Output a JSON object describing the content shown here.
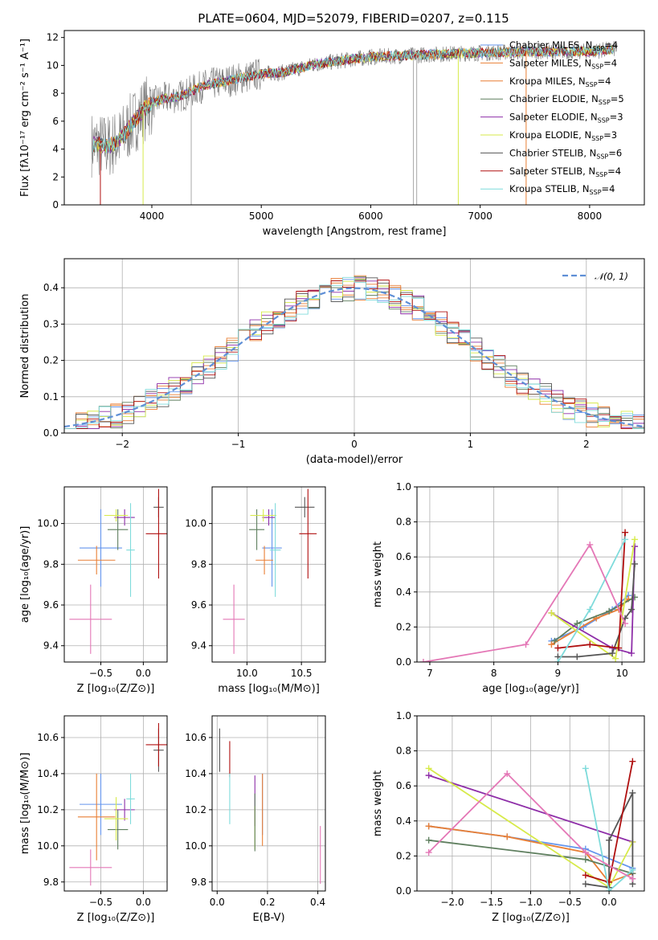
{
  "colors": {
    "Chabrier MILES": "#6495ed",
    "Salpeter MILES": "#e97f35",
    "Kroupa MILES": "#e97f35",
    "Chabrier ELODIE": "#5f7f5f",
    "Salpeter ELODIE": "#8e2ea8",
    "Kroupa ELODIE": "#d7ea4a",
    "Chabrier STELIB": "#555555",
    "Salpeter STELIB": "#b01010",
    "Kroupa STELIB": "#7fdbdb",
    "pink": "#e477b6",
    "gaussian": "#5f8fd6",
    "data": "#7a7a7a"
  },
  "chart_data": [
    {
      "id": "spectrum",
      "type": "line",
      "title": "PLATE=0604, MJD=52079, FIBERID=0207, z=0.115",
      "xlabel": "wavelength [Angstrom, rest frame]",
      "ylabel": "Flux [fλ10⁻¹⁷ erg cm⁻² s⁻¹ A⁻¹]",
      "xlim": [
        3200,
        8500
      ],
      "ylim": [
        0,
        12.5
      ],
      "xticks": [
        4000,
        5000,
        6000,
        7000,
        8000
      ],
      "yticks": [
        0,
        2,
        4,
        6,
        8,
        10,
        12
      ],
      "continuum": [
        [
          3500,
          4.3
        ],
        [
          3600,
          4.2
        ],
        [
          3700,
          4.6
        ],
        [
          3800,
          5.6
        ],
        [
          3900,
          6.6
        ],
        [
          4000,
          7.3
        ],
        [
          4100,
          7.6
        ],
        [
          4200,
          7.7
        ],
        [
          4300,
          7.9
        ],
        [
          4400,
          8.3
        ],
        [
          4500,
          8.6
        ],
        [
          4700,
          8.9
        ],
        [
          5000,
          9.4
        ],
        [
          5200,
          9.5
        ],
        [
          5500,
          10.1
        ],
        [
          5800,
          10.4
        ],
        [
          6000,
          10.6
        ],
        [
          6300,
          10.7
        ],
        [
          6600,
          10.8
        ],
        [
          7000,
          10.9
        ],
        [
          7500,
          11.0
        ],
        [
          8000,
          11.0
        ],
        [
          8250,
          11.2
        ]
      ],
      "legend": [
        "Chabrier MILES, N_SSP=4",
        "Salpeter MILES, N_SSP=4",
        "Kroupa MILES, N_SSP=4",
        "Chabrier ELODIE, N_SSP=5",
        "Salpeter ELODIE, N_SSP=3",
        "Kroupa ELODIE, N_SSP=3",
        "Chabrier STELIB, N_SSP=6",
        "Salpeter STELIB, N_SSP=4",
        "Kroupa STELIB, N_SSP=4"
      ],
      "legend_placement": "right"
    },
    {
      "id": "residuals",
      "type": "bar",
      "xlabel": "(data-model)/error",
      "ylabel": "Normed distribution",
      "xlim": [
        -2.5,
        2.5
      ],
      "ylim": [
        0,
        0.48
      ],
      "xticks": [
        -2,
        -1,
        0,
        1,
        2
      ],
      "yticks": [
        0.0,
        0.1,
        0.2,
        0.3,
        0.4
      ],
      "grid": true,
      "legend": [
        "𝒩(0, 1)"
      ],
      "legend_placement": "top-right"
    },
    {
      "id": "age-vs-Z",
      "type": "scatter",
      "xlabel": "Z [log₁₀(Z/Z⊙)]",
      "ylabel": "age  [log₁₀(age/yr)]",
      "xlim": [
        -0.93,
        0.28
      ],
      "ylim": [
        9.32,
        10.18
      ],
      "xticks": [
        -0.5,
        0.0
      ],
      "yticks": [
        9.4,
        9.6,
        9.8,
        10.0
      ],
      "grid": true,
      "points": [
        {
          "series": "Chabrier MILES",
          "x": -0.5,
          "y": 9.88
        },
        {
          "series": "Salpeter MILES",
          "x": -0.55,
          "y": 9.82
        },
        {
          "series": "Chabrier ELODIE",
          "x": -0.3,
          "y": 9.97
        },
        {
          "series": "Salpeter ELODIE",
          "x": -0.22,
          "y": 10.03
        },
        {
          "series": "Kroupa ELODIE",
          "x": -0.32,
          "y": 10.04
        },
        {
          "series": "Chabrier STELIB",
          "x": 0.18,
          "y": 10.08
        },
        {
          "series": "Salpeter STELIB",
          "x": 0.18,
          "y": 9.95
        },
        {
          "series": "Kroupa STELIB",
          "x": -0.15,
          "y": 9.87
        },
        {
          "series": "pink",
          "x": -0.62,
          "y": 9.53
        }
      ]
    },
    {
      "id": "age-vs-mass",
      "type": "scatter",
      "xlabel": "mass [log₁₀(M/M⊙)]",
      "ylabel": "",
      "xlim": [
        9.68,
        10.72
      ],
      "ylim": [
        9.32,
        10.18
      ],
      "xticks": [
        10.0,
        10.5
      ],
      "yticks": [
        9.4,
        9.6,
        9.8,
        10.0
      ],
      "grid": true,
      "points": [
        {
          "series": "Chabrier MILES",
          "x": 10.23,
          "y": 9.88
        },
        {
          "series": "Salpeter MILES",
          "x": 10.16,
          "y": 9.82
        },
        {
          "series": "Chabrier ELODIE",
          "x": 10.09,
          "y": 9.97
        },
        {
          "series": "Salpeter ELODIE",
          "x": 10.2,
          "y": 10.03
        },
        {
          "series": "Kroupa ELODIE",
          "x": 10.15,
          "y": 10.04
        },
        {
          "series": "Chabrier STELIB",
          "x": 10.53,
          "y": 10.08
        },
        {
          "series": "Salpeter STELIB",
          "x": 10.56,
          "y": 9.95
        },
        {
          "series": "Kroupa STELIB",
          "x": 10.26,
          "y": 9.87
        },
        {
          "series": "pink",
          "x": 9.88,
          "y": 9.53
        }
      ]
    },
    {
      "id": "weight-vs-age",
      "type": "line",
      "xlabel": "age  [log₁₀(age/yr)]",
      "ylabel": "mass weight",
      "xlim": [
        6.8,
        10.35
      ],
      "ylim": [
        0,
        1.0
      ],
      "xticks": [
        7,
        8,
        9,
        10
      ],
      "yticks": [
        0.0,
        0.2,
        0.4,
        0.6,
        0.8,
        1.0
      ],
      "grid": true,
      "series": [
        {
          "name": "Chabrier MILES",
          "x": [
            8.9,
            9.4,
            9.85,
            10.1
          ],
          "y": [
            0.12,
            0.2,
            0.3,
            0.38
          ]
        },
        {
          "name": "Salpeter MILES",
          "x": [
            8.9,
            9.6,
            9.95,
            10.1
          ],
          "y": [
            0.1,
            0.25,
            0.3,
            0.36
          ]
        },
        {
          "name": "Chabrier ELODIE",
          "x": [
            8.95,
            9.3,
            9.8,
            10.2
          ],
          "y": [
            0.12,
            0.22,
            0.29,
            0.37
          ]
        },
        {
          "name": "Salpeter ELODIE",
          "x": [
            8.9,
            9.85,
            10.15,
            10.2
          ],
          "y": [
            0.28,
            0.08,
            0.05,
            0.66
          ]
        },
        {
          "name": "Kroupa ELODIE",
          "x": [
            8.9,
            9.9,
            10.2
          ],
          "y": [
            0.28,
            0.02,
            0.7
          ]
        },
        {
          "name": "Chabrier STELIB",
          "x": [
            9.0,
            9.3,
            9.85,
            10.05,
            10.15,
            10.2
          ],
          "y": [
            0.03,
            0.03,
            0.05,
            0.25,
            0.3,
            0.56
          ]
        },
        {
          "name": "Salpeter STELIB",
          "x": [
            9.0,
            9.5,
            9.95,
            10.05
          ],
          "y": [
            0.08,
            0.1,
            0.08,
            0.74
          ]
        },
        {
          "name": "Kroupa STELIB",
          "x": [
            9.0,
            9.5,
            10.05
          ],
          "y": [
            0.0,
            0.3,
            0.7
          ]
        },
        {
          "name": "pink",
          "x": [
            6.9,
            8.5,
            9.5,
            10.05
          ],
          "y": [
            0.0,
            0.1,
            0.67,
            0.22
          ]
        }
      ]
    },
    {
      "id": "mass-vs-Z",
      "type": "scatter",
      "xlabel": "Z [log₁₀(Z/Z⊙)]",
      "ylabel": "mass [log₁₀(M/M⊙)]",
      "xlim": [
        -0.93,
        0.28
      ],
      "ylim": [
        9.75,
        10.72
      ],
      "xticks": [
        -0.5,
        0.0
      ],
      "yticks": [
        9.8,
        10.0,
        10.2,
        10.4,
        10.6
      ],
      "grid": true,
      "points": [
        {
          "series": "Chabrier MILES",
          "x": -0.5,
          "y": 10.23
        },
        {
          "series": "Salpeter MILES",
          "x": -0.55,
          "y": 10.16
        },
        {
          "series": "Chabrier ELODIE",
          "x": -0.3,
          "y": 10.09
        },
        {
          "series": "Salpeter ELODIE",
          "x": -0.22,
          "y": 10.2
        },
        {
          "series": "Kroupa ELODIE",
          "x": -0.32,
          "y": 10.15
        },
        {
          "series": "Chabrier STELIB",
          "x": 0.18,
          "y": 10.53
        },
        {
          "series": "Salpeter STELIB",
          "x": 0.18,
          "y": 10.56
        },
        {
          "series": "Kroupa STELIB",
          "x": -0.15,
          "y": 10.26
        },
        {
          "series": "pink",
          "x": -0.62,
          "y": 9.88
        }
      ]
    },
    {
      "id": "mass-vs-ebv",
      "type": "scatter",
      "xlabel": "E(B-V)",
      "ylabel": "",
      "xlim": [
        -0.02,
        0.43
      ],
      "ylim": [
        9.75,
        10.72
      ],
      "xticks": [
        0.0,
        0.2,
        0.4
      ],
      "yticks": [
        9.8,
        10.0,
        10.2,
        10.4,
        10.6
      ],
      "grid": true,
      "points": [
        {
          "series": "Chabrier STELIB",
          "x": 0.01,
          "y": 10.53
        },
        {
          "series": "Salpeter STELIB",
          "x": 0.05,
          "y": 10.48
        },
        {
          "series": "Kroupa STELIB",
          "x": 0.05,
          "y": 10.26
        },
        {
          "series": "Salpeter ELODIE",
          "x": 0.15,
          "y": 10.25
        },
        {
          "series": "Kroupa ELODIE",
          "x": 0.15,
          "y": 10.1
        },
        {
          "series": "Chabrier ELODIE",
          "x": 0.15,
          "y": 10.13
        },
        {
          "series": "Chabrier MILES",
          "x": 0.18,
          "y": 10.23
        },
        {
          "series": "Salpeter MILES",
          "x": 0.18,
          "y": 10.2
        },
        {
          "series": "pink",
          "x": 0.41,
          "y": 9.95
        }
      ]
    },
    {
      "id": "weight-vs-Z",
      "type": "line",
      "xlabel": "Z [log₁₀(Z/Z⊙)]",
      "ylabel": "mass weight",
      "xlim": [
        -2.45,
        0.45
      ],
      "ylim": [
        0,
        1.0
      ],
      "xticks": [
        -2.0,
        -1.5,
        -1.0,
        -0.5,
        0.0
      ],
      "yticks": [
        0.0,
        0.2,
        0.4,
        0.6,
        0.8,
        1.0
      ],
      "grid": true,
      "series": [
        {
          "name": "Chabrier MILES",
          "x": [
            -2.3,
            -1.3,
            -0.3,
            0.3
          ],
          "y": [
            0.37,
            0.31,
            0.24,
            0.13
          ]
        },
        {
          "name": "Salpeter MILES",
          "x": [
            -2.3,
            -1.3,
            -0.3,
            0.0,
            0.3
          ],
          "y": [
            0.37,
            0.31,
            0.22,
            0.05,
            0.1
          ]
        },
        {
          "name": "Chabrier ELODIE",
          "x": [
            -2.3,
            -0.3,
            0.3
          ],
          "y": [
            0.29,
            0.18,
            0.1
          ]
        },
        {
          "name": "Salpeter ELODIE",
          "x": [
            -2.3,
            0.3
          ],
          "y": [
            0.66,
            0.28
          ]
        },
        {
          "name": "Kroupa ELODIE",
          "x": [
            -2.3,
            0.0,
            0.3
          ],
          "y": [
            0.7,
            0.02,
            0.28
          ]
        },
        {
          "name": "Chabrier STELIB",
          "x": [
            -0.3,
            0.0,
            0.0,
            0.3,
            0.3
          ],
          "y": [
            0.04,
            0.02,
            0.29,
            0.56,
            0.04
          ]
        },
        {
          "name": "Salpeter STELIB",
          "x": [
            -0.3,
            0.0,
            0.3
          ],
          "y": [
            0.09,
            0.05,
            0.74
          ]
        },
        {
          "name": "Kroupa STELIB",
          "x": [
            -0.3,
            0.0,
            0.3
          ],
          "y": [
            0.7,
            0.0,
            0.12
          ]
        },
        {
          "name": "pink",
          "x": [
            -2.3,
            -1.3,
            -0.3,
            0.3
          ],
          "y": [
            0.22,
            0.67,
            0.22,
            0.07
          ]
        }
      ]
    }
  ]
}
